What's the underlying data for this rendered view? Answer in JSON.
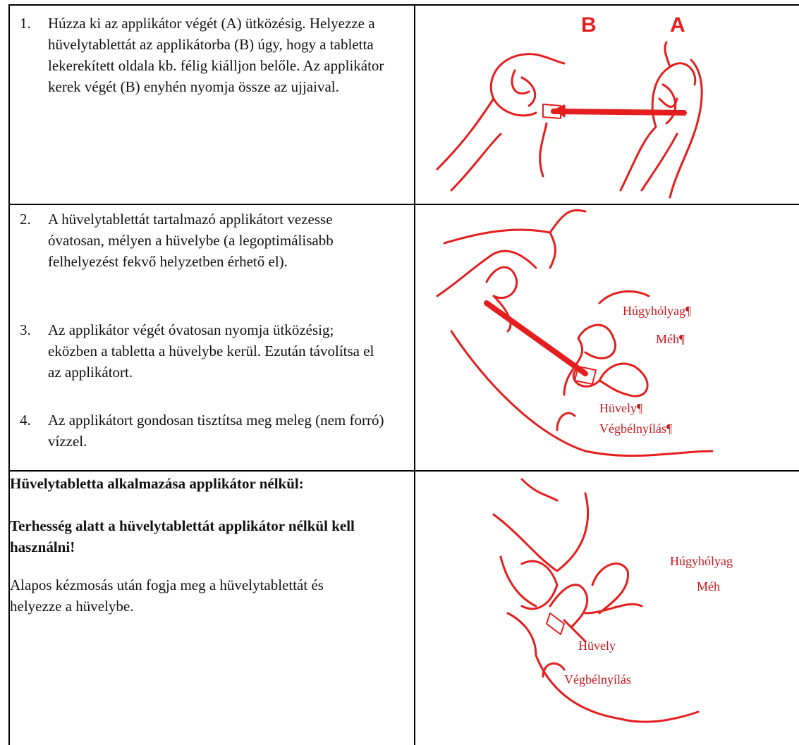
{
  "table": {
    "rows": [
      {
        "paragraphs": [
          {
            "number": "1.",
            "text": "Húzza ki az applikátor végét (A) ütközésig. Helyezze a hüvelytablettát az applikátorba (B) úgy, hogy a tabletta lekerekített oldala kb. félig kiálljon belőle. Az applikátor kerek végét (B) enyhén nyomja össze az ujjaival."
          }
        ],
        "figure": {
          "labels": [
            "B",
            "A"
          ]
        }
      },
      {
        "paragraphs": [
          {
            "number": "2.",
            "text": "A hüvelytablettát tartalmazó applikátort vezesse óvatosan, mélyen a hüvelybe (a legoptimálisabb felhelyezést fekvő helyzetben érhető el)."
          },
          {
            "number": "3.",
            "text": "Az applikátor végét óvatosan nyomja ütközésig; eközben a tabletta a hüvelybe kerül. Ezután távolítsa el az applikátort."
          },
          {
            "number": "4.",
            "text": "Az applikátort gondosan tisztítsa meg meleg (nem forró) vízzel."
          }
        ],
        "figure": {
          "labels": [
            "Húgyhólyag¶",
            "Méh¶",
            "Hüvely¶",
            "Végbélnyílás¶"
          ]
        }
      },
      {
        "paragraphs": [
          {
            "text": "Hüvelytabletta alkalmazása applikátor nélkül:"
          },
          {
            "text": "Terhesség alatt a hüvelytablettát applikátor nélkül kell használni!"
          },
          {
            "text": "Alapos kézmosás után fogja meg a hüvelytablettát és helyezze a hüvelybe."
          }
        ],
        "figure": {
          "labels": [
            "Húgyhólyag",
            "Méh",
            "Hüvely",
            "Végbélnyílás"
          ]
        }
      }
    ]
  }
}
